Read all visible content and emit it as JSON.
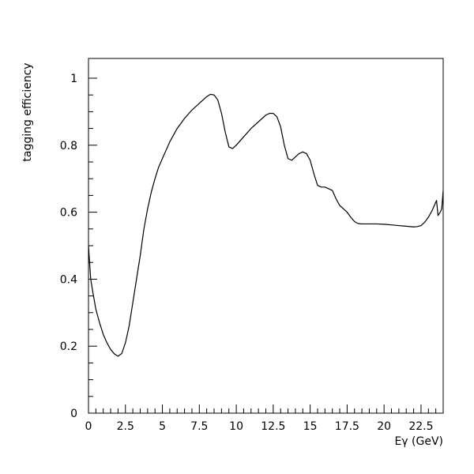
{
  "chart_data": {
    "type": "line",
    "title": "",
    "xlabel": "Eγ (GeV)",
    "ylabel": "tagging efficiency",
    "xlim": [
      0,
      24
    ],
    "ylim": [
      0,
      1.05
    ],
    "x_ticks": [
      0,
      2.5,
      5,
      7.5,
      10,
      12.5,
      15,
      17.5,
      20,
      22.5
    ],
    "x_tick_labels": [
      "0",
      "2.5",
      "5",
      "7.5",
      "10",
      "12.5",
      "15",
      "17.5",
      "20",
      "22.5"
    ],
    "y_ticks": [
      0,
      0.2,
      0.4,
      0.6,
      0.8,
      1
    ],
    "y_tick_labels": [
      "0",
      "0.2",
      "0.4",
      "0.6",
      "0.8",
      "1"
    ],
    "grid": false,
    "line_color": "#000000",
    "series": [
      {
        "x": [
          0,
          0.15,
          0.3,
          0.5,
          0.75,
          1.0,
          1.25,
          1.5,
          1.75,
          2.0,
          2.25,
          2.5,
          2.75,
          3.0,
          3.25,
          3.5,
          3.75,
          4.0,
          4.25,
          4.5,
          4.75,
          5.0,
          5.5,
          6.0,
          6.5,
          7.0,
          7.5,
          8.0,
          8.25,
          8.5,
          8.75,
          9.0,
          9.25,
          9.5,
          9.75,
          10.0,
          10.5,
          11.0,
          11.5,
          12.0,
          12.25,
          12.5,
          12.75,
          13.0,
          13.25,
          13.5,
          13.75,
          14.0,
          14.25,
          14.5,
          14.75,
          15.0,
          15.25,
          15.5,
          15.75,
          16.0,
          16.5,
          16.75,
          17.0,
          17.25,
          17.5,
          17.75,
          18.0,
          18.25,
          18.5,
          19.0,
          19.5,
          20.0,
          20.5,
          21.0,
          21.5,
          22.0,
          22.25,
          22.5,
          22.75,
          23.0,
          23.25,
          23.45,
          23.55,
          23.65,
          23.8,
          23.9,
          24.0
        ],
        "y": [
          0.5,
          0.4,
          0.36,
          0.31,
          0.27,
          0.235,
          0.21,
          0.19,
          0.177,
          0.17,
          0.178,
          0.21,
          0.26,
          0.33,
          0.4,
          0.47,
          0.55,
          0.61,
          0.66,
          0.7,
          0.735,
          0.76,
          0.81,
          0.85,
          0.88,
          0.905,
          0.925,
          0.945,
          0.952,
          0.95,
          0.935,
          0.895,
          0.84,
          0.795,
          0.79,
          0.8,
          0.825,
          0.85,
          0.87,
          0.89,
          0.895,
          0.895,
          0.885,
          0.855,
          0.8,
          0.76,
          0.755,
          0.765,
          0.775,
          0.78,
          0.775,
          0.755,
          0.715,
          0.68,
          0.675,
          0.675,
          0.665,
          0.64,
          0.62,
          0.61,
          0.6,
          0.585,
          0.572,
          0.566,
          0.565,
          0.565,
          0.565,
          0.564,
          0.562,
          0.56,
          0.558,
          0.556,
          0.557,
          0.56,
          0.57,
          0.585,
          0.605,
          0.625,
          0.635,
          0.59,
          0.6,
          0.61,
          0.665
        ]
      }
    ]
  }
}
